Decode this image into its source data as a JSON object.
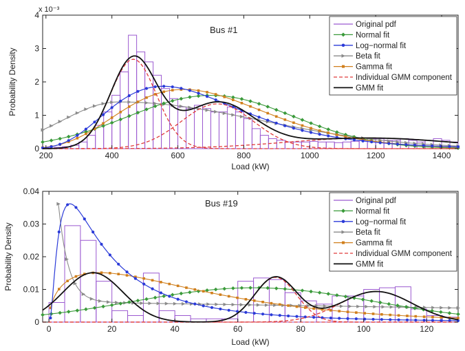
{
  "colors": {
    "original": "#9b59d0",
    "normal": "#3a9a3a",
    "lognormal": "#2a3ad8",
    "beta": "#8a8a8a",
    "gamma": "#d07f1c",
    "component": "#e03a3a",
    "gmm": "#111111"
  },
  "legend_labels": [
    "Original pdf",
    "Normal fit",
    "Log−normal fit",
    "Beta fit",
    "Gamma fit",
    "Individual GMM component",
    "GMM fit"
  ],
  "chart_data": [
    {
      "type": "histogram-with-fits",
      "title": "Bus #1",
      "xlabel": "Load (kW)",
      "ylabel": "Probability Density",
      "exponent_label": "x 10⁻³",
      "xlim": [
        190,
        1450
      ],
      "ylim": [
        0,
        4
      ],
      "xticks": [
        200,
        400,
        600,
        800,
        1000,
        1200,
        1400
      ],
      "yticks": [
        0,
        1,
        2,
        3,
        4
      ],
      "legend_position": "top-right",
      "bin_edges": [
        200,
        225,
        250,
        275,
        300,
        325,
        350,
        375,
        400,
        425,
        450,
        475,
        500,
        525,
        550,
        575,
        600,
        625,
        650,
        675,
        700,
        725,
        750,
        775,
        800,
        825,
        850,
        875,
        900,
        925,
        950,
        975,
        1000,
        1025,
        1050,
        1075,
        1100,
        1125,
        1150,
        1175,
        1200,
        1225,
        1250,
        1275,
        1300,
        1325,
        1350,
        1375,
        1400,
        1425,
        1450
      ],
      "histogram": [
        0.02,
        0.04,
        0.06,
        0.1,
        0.2,
        0.4,
        0.7,
        1.1,
        1.6,
        2.3,
        3.4,
        2.9,
        2.6,
        2.2,
        1.8,
        1.5,
        1.25,
        1.2,
        1.3,
        1.2,
        1.1,
        1.1,
        1.25,
        1.1,
        0.9,
        0.6,
        0.4,
        0.3,
        0.25,
        0.2,
        0.2,
        0.2,
        0.22,
        0.2,
        0.2,
        0.18,
        0.2,
        0.22,
        0.25,
        0.3,
        0.3,
        0.25,
        0.25,
        0.3,
        0.25,
        0.2,
        0.25,
        0.3,
        0.25,
        0.2
      ],
      "fits": {
        "normal": {
          "mean": 700,
          "sd": 250
        },
        "lognormal": {
          "mu": 6.45,
          "sigma": 0.36
        },
        "beta": {
          "mode": 420,
          "peak": 1.4
        },
        "gamma": {
          "k": 8,
          "theta": 84
        }
      },
      "gmm_components": [
        {
          "weight": 0.47,
          "mean": 465,
          "sd": 70
        },
        {
          "weight": 0.37,
          "mean": 720,
          "sd": 110
        },
        {
          "weight": 0.2,
          "mean": 1180,
          "sd": 250
        }
      ]
    },
    {
      "type": "histogram-with-fits",
      "title": "Bus #19",
      "xlabel": "Load (kW)",
      "ylabel": "Probability Density",
      "exponent_label": "",
      "xlim": [
        -2,
        130
      ],
      "ylim": [
        0,
        0.04
      ],
      "xticks": [
        0,
        20,
        40,
        60,
        80,
        100,
        120
      ],
      "yticks": [
        0,
        0.01,
        0.02,
        0.03,
        0.04
      ],
      "ytick_labels": [
        "0",
        "0.01",
        "0.02",
        "0.03",
        "0.04"
      ],
      "legend_position": "top-right",
      "bin_edges": [
        0,
        5,
        10,
        15,
        20,
        25,
        30,
        35,
        40,
        45,
        50,
        55,
        60,
        65,
        70,
        75,
        80,
        85,
        90,
        95,
        100,
        105,
        110,
        115,
        120,
        125,
        130
      ],
      "histogram": [
        0.006,
        0.0295,
        0.025,
        0.0125,
        0.0035,
        0.002,
        0.015,
        0.0035,
        0.002,
        0.001,
        0.001,
        0.001,
        0.0125,
        0.0135,
        0.013,
        0.009,
        0.0065,
        0.0055,
        0.008,
        0.008,
        0.01,
        0.0105,
        0.0108,
        0.004,
        0.002,
        0.0015
      ],
      "fits": {
        "normal": {
          "mean": 65,
          "sd": 38
        },
        "lognormal": {
          "mu": 2.9,
          "sigma": 1.0
        },
        "beta": {
          "decay": 0.0147
        },
        "gamma": {
          "k": 1.5,
          "theta": 32
        }
      },
      "gmm_components": [
        {
          "weight": 0.36,
          "mean": 14,
          "sd": 9.5
        },
        {
          "weight": 0.23,
          "mean": 72,
          "sd": 6.7
        },
        {
          "weight": 0.27,
          "mean": 104,
          "sd": 11.5
        }
      ]
    }
  ]
}
